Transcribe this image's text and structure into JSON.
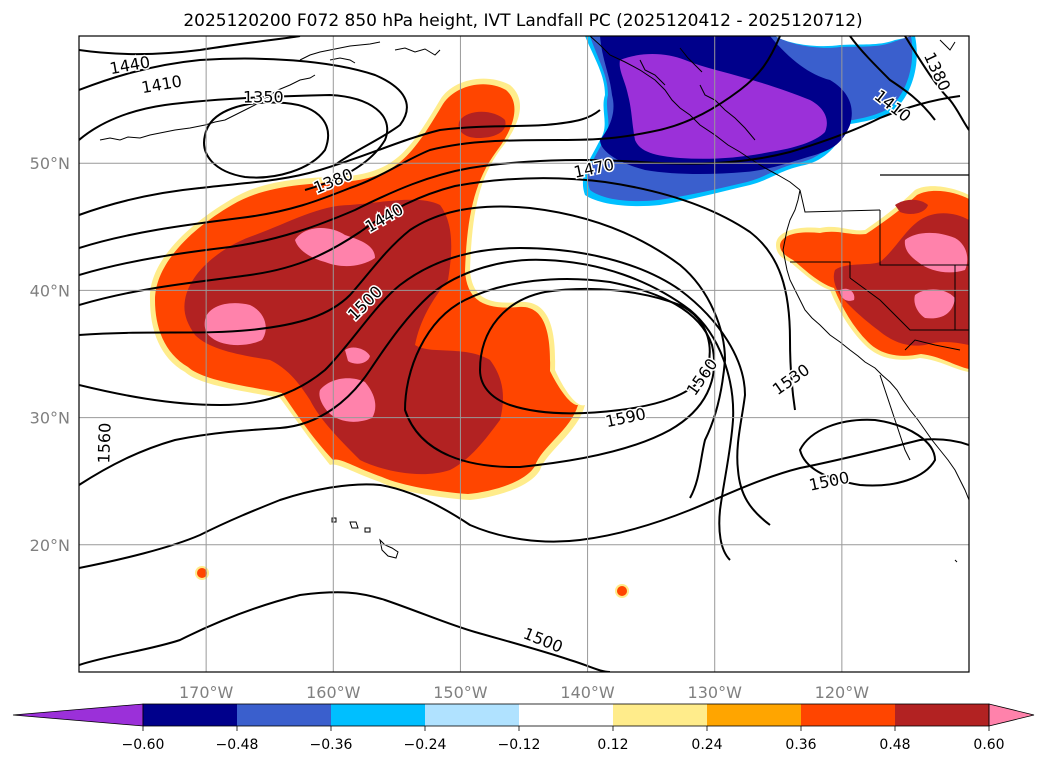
{
  "chart_data": {
    "type": "filled contour map",
    "title": "2025120200 F072 850 hPa height, IVT Landfall PC (2025120412 - 2025120712)",
    "map": {
      "lon_range": [
        -180,
        -110
      ],
      "lat_range": [
        10,
        60
      ],
      "lon_ticks": [
        {
          "lon": -170,
          "label": "170°W"
        },
        {
          "lon": -160,
          "label": "160°W"
        },
        {
          "lon": -150,
          "label": "150°W"
        },
        {
          "lon": -140,
          "label": "140°W"
        },
        {
          "lon": -130,
          "label": "130°W"
        },
        {
          "lon": -120,
          "label": "120°W"
        }
      ],
      "lat_ticks": [
        {
          "lat": 50,
          "label": "50°N"
        },
        {
          "lat": 40,
          "label": "40°N"
        },
        {
          "lat": 30,
          "label": "30°N"
        },
        {
          "lat": 20,
          "label": "20°N"
        }
      ],
      "grid": true
    },
    "colorbar": {
      "colors": [
        "#9b30d9",
        "#00008b",
        "#3a5fcd",
        "#00bfff",
        "#b0e2ff",
        "#ffffff",
        "#ffec8b",
        "#ffa500",
        "#ff4500",
        "#b22222",
        "#ff82ab"
      ],
      "tick_labels": [
        "−0.60",
        "−0.48",
        "−0.36",
        "−0.24",
        "−0.12",
        "0.12",
        "0.24",
        "0.36",
        "0.48",
        "0.60"
      ],
      "extend": "both"
    },
    "height_contours": {
      "interval": 30,
      "labels": [
        {
          "text": "1440",
          "lon": -176.0,
          "lat": 57.7,
          "angle": -10
        },
        {
          "text": "1410",
          "lon": -173.5,
          "lat": 56.2,
          "angle": -10
        },
        {
          "text": "1350",
          "lon": -165.5,
          "lat": 55.2,
          "angle": 0
        },
        {
          "text": "1380",
          "lon": -160.0,
          "lat": 48.6,
          "angle": -22
        },
        {
          "text": "1440",
          "lon": -156.0,
          "lat": 45.7,
          "angle": -30
        },
        {
          "text": "1500",
          "lon": -157.5,
          "lat": 39.0,
          "angle": -45
        },
        {
          "text": "1470",
          "lon": -139.5,
          "lat": 49.6,
          "angle": -12
        },
        {
          "text": "1590",
          "lon": -137.0,
          "lat": 30.0,
          "angle": -12
        },
        {
          "text": "1560",
          "lon": -131.0,
          "lat": 33.2,
          "angle": -55
        },
        {
          "text": "1530",
          "lon": -124.0,
          "lat": 33.0,
          "angle": -35
        },
        {
          "text": "1500",
          "lon": -121.0,
          "lat": 25.0,
          "angle": -12
        },
        {
          "text": "1560",
          "lon": -178.0,
          "lat": 28.0,
          "angle": -88
        },
        {
          "text": "1410",
          "lon": -116.0,
          "lat": 54.5,
          "angle": 38
        },
        {
          "text": "1380",
          "lon": -112.5,
          "lat": 57.2,
          "angle": 65
        },
        {
          "text": "1500",
          "lon": -143.5,
          "lat": 12.5,
          "angle": 22
        }
      ]
    }
  }
}
